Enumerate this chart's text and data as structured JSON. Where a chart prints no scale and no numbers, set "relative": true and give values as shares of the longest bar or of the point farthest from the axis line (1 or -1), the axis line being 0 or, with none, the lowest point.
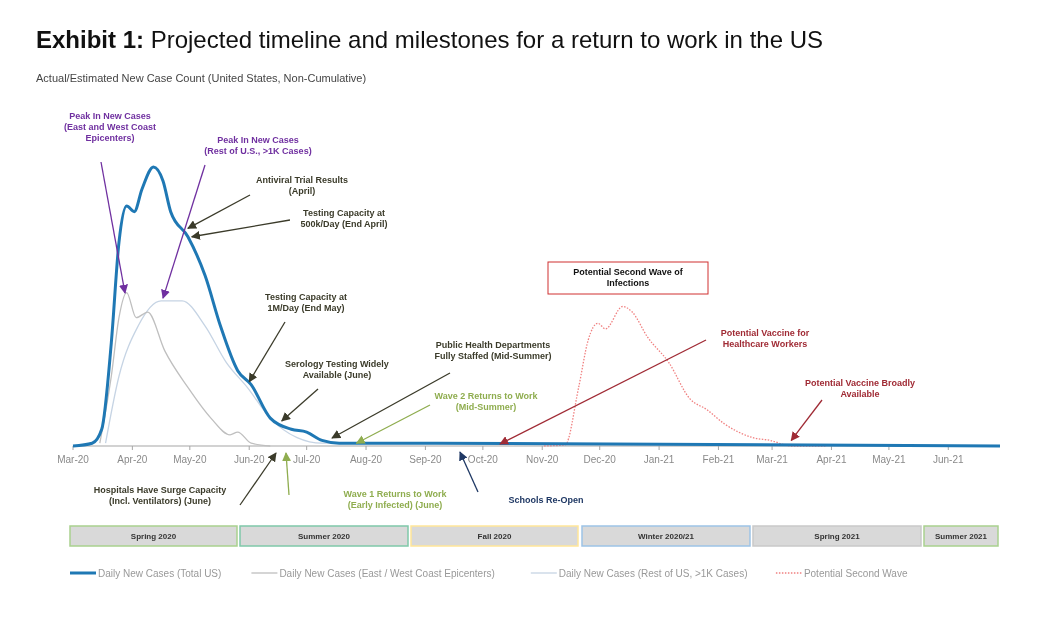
{
  "chart_data": {
    "type": "line",
    "title": "Exhibit 1:  Projected timeline and milestones for a return to work in the US",
    "subtitle": "Actual/Estimated New Case Count (United States, Non-Cumulative)",
    "relative": true,
    "marker": "none",
    "legend": "bottom",
    "grid": false,
    "xlim": [
      "2020-03-01",
      "2021-06-28"
    ],
    "xticks": [
      {
        "value": "2020-03-01",
        "label": "Mar-20"
      },
      {
        "value": "2020-04-01",
        "label": "Apr-20"
      },
      {
        "value": "2020-05-01",
        "label": "May-20"
      },
      {
        "value": "2020-06-01",
        "label": "Jun-20"
      },
      {
        "value": "2020-07-01",
        "label": "Jul-20"
      },
      {
        "value": "2020-08-01",
        "label": "Aug-20"
      },
      {
        "value": "2020-09-01",
        "label": "Sep-20"
      },
      {
        "value": "2020-10-01",
        "label": "Oct-20"
      },
      {
        "value": "2020-11-01",
        "label": "Nov-20"
      },
      {
        "value": "2020-12-01",
        "label": "Dec-20"
      },
      {
        "value": "2021-01-01",
        "label": "Jan-21"
      },
      {
        "value": "2021-02-01",
        "label": "Feb-21"
      },
      {
        "value": "2021-03-01",
        "label": "Mar-21"
      },
      {
        "value": "2021-04-01",
        "label": "Apr-21"
      },
      {
        "value": "2021-05-01",
        "label": "May-21"
      },
      {
        "value": "2021-06-01",
        "label": "Jun-21"
      }
    ],
    "series": [
      {
        "name": "Daily New Cases (Total US)",
        "color": "#1f78b4",
        "line_style": "solid",
        "x": [
          "2020-03-01",
          "2020-03-11",
          "2020-03-16",
          "2020-03-21",
          "2020-03-25",
          "2020-03-29",
          "2020-04-02",
          "2020-04-06",
          "2020-04-12",
          "2020-04-17",
          "2020-04-21",
          "2020-04-30",
          "2020-05-09",
          "2020-05-17",
          "2020-05-26",
          "2020-06-02",
          "2020-06-12",
          "2020-06-23",
          "2020-07-01",
          "2020-07-09",
          "2020-07-18",
          "2020-08-03",
          "2020-09-07",
          "2021-06-28"
        ],
        "values": [
          0,
          0.01,
          0.06,
          0.37,
          0.73,
          0.86,
          0.84,
          0.92,
          1,
          0.95,
          0.84,
          0.75,
          0.61,
          0.43,
          0.27,
          0.22,
          0.1,
          0.06,
          0.05,
          0.02,
          0.01,
          0.01,
          0.01,
          0
        ]
      },
      {
        "name": "Daily New Cases (East / West Coast Epicenters)",
        "color": "#bfbfbf",
        "line_style": "solid",
        "x": [
          "2020-03-15",
          "2020-03-21",
          "2020-03-25",
          "2020-03-29",
          "2020-04-03",
          "2020-04-09",
          "2020-04-18",
          "2020-04-30",
          "2020-05-12",
          "2020-05-22",
          "2020-05-26",
          "2020-06-02",
          "2020-06-12"
        ],
        "values": [
          0.01,
          0.25,
          0.46,
          0.55,
          0.46,
          0.48,
          0.34,
          0.21,
          0.1,
          0.04,
          0.05,
          0.01,
          0
        ]
      },
      {
        "name": "Daily New Cases (Rest of US, >1K Cases)",
        "color": "#c6d4e4",
        "line_style": "solid",
        "x": [
          "2020-03-18",
          "2020-03-25",
          "2020-04-04",
          "2020-04-16",
          "2020-04-27",
          "2020-05-09",
          "2020-05-20",
          "2020-05-31",
          "2020-06-12",
          "2020-06-26",
          "2020-07-09",
          "2020-07-27"
        ],
        "values": [
          0.01,
          0.25,
          0.43,
          0.52,
          0.52,
          0.43,
          0.3,
          0.21,
          0.1,
          0.03,
          0.01,
          0.01
        ]
      },
      {
        "name": "Potential Second Wave",
        "color": "#f08080",
        "line_style": "dotted",
        "x": [
          "2020-11-02",
          "2020-11-13",
          "2020-11-20",
          "2020-11-25",
          "2020-11-30",
          "2020-12-04",
          "2020-12-13",
          "2020-12-18",
          "2020-12-26",
          "2021-01-06",
          "2021-01-17",
          "2021-01-26",
          "2021-02-04",
          "2021-02-19",
          "2021-02-28",
          "2021-03-11",
          "2021-03-29"
        ],
        "values": [
          0,
          0.004,
          0.21,
          0.38,
          0.44,
          0.42,
          0.5,
          0.48,
          0.39,
          0.3,
          0.17,
          0.13,
          0.08,
          0.03,
          0.02,
          0,
          0
        ]
      }
    ],
    "annotations": [
      "Peak In New Cases\n(East and West Coast\nEpicenters)",
      {
        "text": "Peak In New Cases\n(Rest of U.S., >1K Cases)",
        "x": "2020-04-17",
        "y": 0.53
      },
      {
        "text": "Antiviral  Trial Results\n(April)",
        "x": "2020-04-30",
        "y": 0.78
      },
      {
        "text": "Testing Capacity at\n500k/Day  (End April)",
        "x": "2020-05-02",
        "y": 0.75
      },
      {
        "text": "Testing Capacity at\n1M/Day (End May)",
        "x": "2020-06-01",
        "y": 0.23
      },
      {
        "text": "Serology Testing Widely\nAvailable (June)",
        "x": "2020-06-18",
        "y": 0.09
      },
      "Public Health Departments\nFully Staffed (Mid-Summer)",
      {
        "text": "Wave 2 Returns to Work\n(Mid-Summer)",
        "x": "2020-07-27",
        "y": 0.01
      },
      "Hospitals Have Surge Capacity\n(Incl. Ventilators) (June)",
      "Wave 1 Returns to Work\n(Early Infected) (June)",
      "Schools Re-Open",
      "Potential Vaccine for\nHealthcare Workers",
      {
        "text": "Potential Vaccine Broadly\nAvailable",
        "x": "2021-03-11",
        "y": 0.02
      },
      "Potential Second Wave of\nInfections",
      "Spring 2020",
      "Summer 2020",
      "Fall 2020",
      "Winter 2020/21",
      "Spring 2021",
      "Summer 2021"
    ]
  }
}
